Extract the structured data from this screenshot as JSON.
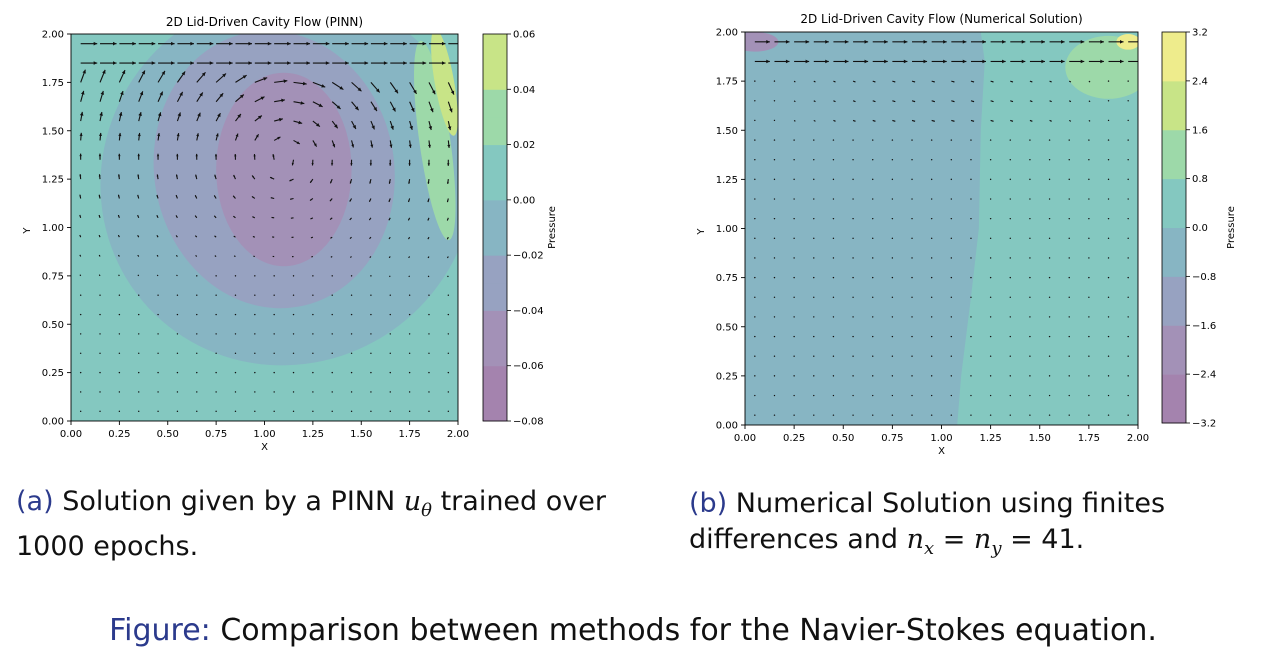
{
  "chart_data": [
    {
      "type": "contour",
      "title": "2D Lid-Driven Cavity Flow (PINN)",
      "xlabel": "X",
      "ylabel": "Y",
      "xlim": [
        0,
        2
      ],
      "ylim": [
        0,
        2
      ],
      "xticks": [
        "0.00",
        "0.25",
        "0.50",
        "0.75",
        "1.00",
        "1.25",
        "1.50",
        "1.75",
        "2.00"
      ],
      "yticks": [
        "0.00",
        "0.25",
        "0.50",
        "0.75",
        "1.00",
        "1.25",
        "1.50",
        "1.75",
        "2.00"
      ],
      "colorbar_label": "Pressure",
      "colorbar_ticks": [
        "−0.08",
        "−0.06",
        "−0.04",
        "−0.02",
        "0.00",
        "0.02",
        "0.04",
        "0.06"
      ],
      "levels": [
        -0.08,
        -0.07,
        -0.06,
        -0.05,
        -0.04,
        -0.03,
        -0.02,
        -0.01,
        0.0,
        0.01,
        0.02,
        0.03,
        0.04,
        0.05,
        0.06
      ],
      "level_colors": [
        "#a483ae",
        "#a483ae",
        "#a391b7",
        "#a391b7",
        "#97a2c1",
        "#97a2c1",
        "#87b5c3",
        "#87b5c3",
        "#84c8c0",
        "#84c8c0",
        "#9dd9a9",
        "#9dd9a9",
        "#c8e487",
        "#c8e487"
      ],
      "pressure_field": {
        "background": 0.0,
        "regions": [
          {
            "level": -0.02,
            "center": [
              1.12,
              1.25
            ],
            "radius": [
              0.98,
              0.95
            ],
            "rotation_deg": 40
          },
          {
            "level": -0.04,
            "center": [
              1.05,
              1.3
            ],
            "radius": [
              0.62,
              0.72
            ],
            "rotation_deg": 10
          },
          {
            "level": -0.06,
            "center": [
              1.1,
              1.3
            ],
            "radius": [
              0.35,
              0.5
            ],
            "rotation_deg": 0
          },
          {
            "level": 0.02,
            "center": [
              1.88,
              1.45
            ],
            "radius": [
              0.08,
              0.52
            ],
            "rotation_deg": 8
          },
          {
            "level": 0.04,
            "center": [
              1.93,
              1.75
            ],
            "radius": [
              0.05,
              0.28
            ],
            "rotation_deg": 10
          }
        ]
      },
      "quiver": {
        "grid": [
          20,
          20
        ],
        "lid_speed": 1.0
      }
    },
    {
      "type": "contour",
      "title": "2D Lid-Driven Cavity Flow (Numerical Solution)",
      "xlabel": "X",
      "ylabel": "Y",
      "xlim": [
        0,
        2
      ],
      "ylim": [
        0,
        2
      ],
      "xticks": [
        "0.00",
        "0.25",
        "0.50",
        "0.75",
        "1.00",
        "1.25",
        "1.50",
        "1.75",
        "2.00"
      ],
      "yticks": [
        "0.00",
        "0.25",
        "0.50",
        "0.75",
        "1.00",
        "1.25",
        "1.50",
        "1.75",
        "2.00"
      ],
      "colorbar_label": "Pressure",
      "colorbar_ticks": [
        "−3.2",
        "−2.4",
        "−1.6",
        "−0.8",
        "0.0",
        "0.8",
        "1.6",
        "2.4",
        "3.2"
      ],
      "levels": [
        -3.2,
        -2.4,
        -1.6,
        -0.8,
        0.0,
        0.8,
        1.6,
        2.4,
        3.2
      ],
      "level_colors": [
        "#a483ae",
        "#a391b7",
        "#97a2c1",
        "#87b5c3",
        "#84c8c0",
        "#9dd9a9",
        "#c8e487",
        "#eeec8c"
      ],
      "pressure_field": {
        "left_level": -0.8,
        "right_level": 0.0,
        "boundary_x": [
          1.08,
          1.1,
          1.15,
          1.19,
          1.2,
          1.22,
          1.2
        ],
        "boundary_y": [
          0.0,
          0.25,
          0.65,
          1.0,
          1.5,
          1.85,
          2.0
        ],
        "corner_spots": [
          {
            "level": -2.4,
            "center": [
              0.05,
              1.95
            ],
            "radius": [
              0.12,
              0.05
            ]
          },
          {
            "level": 0.8,
            "center": [
              1.85,
              1.82
            ],
            "radius": [
              0.22,
              0.16
            ]
          },
          {
            "level": 2.4,
            "center": [
              1.95,
              1.95
            ],
            "radius": [
              0.06,
              0.04
            ]
          }
        ]
      },
      "quiver": {
        "grid": [
          20,
          20
        ],
        "lid_speed": 1.0
      }
    }
  ],
  "captions": {
    "a": {
      "tag": "(a)",
      "text_1": " Solution given by a PINN ",
      "math_var": "u",
      "math_sub": "θ",
      "text_2": " trained over 1000 epochs."
    },
    "b": {
      "tag": "(b)",
      "text_1": " Numerical Solution using finites differences and ",
      "math": "n",
      "sub_x": "x",
      "eq": " = ",
      "math_2": "n",
      "sub_y": "y",
      "tail": " = 41."
    }
  },
  "figure_caption": {
    "tag": "Figure:",
    "text": " Comparison between methods for the Navier-Stokes equation."
  }
}
